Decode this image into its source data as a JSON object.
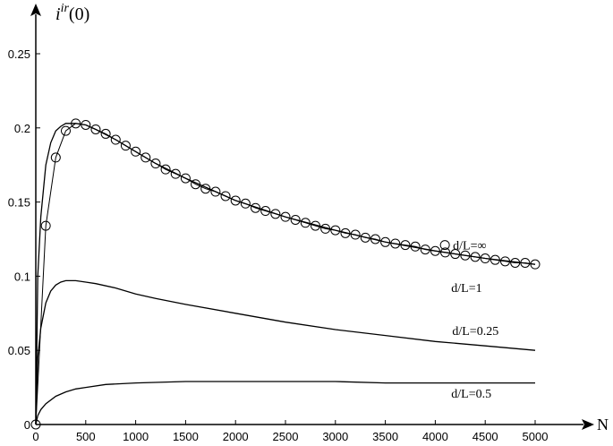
{
  "chart_data": {
    "type": "line",
    "title": "",
    "xlabel": "N",
    "ylabel": {
      "base": "i",
      "sup": "ir",
      "suffix": "(0)"
    },
    "xlim": [
      0,
      5000
    ],
    "ylim": [
      0,
      0.25
    ],
    "xticks": [
      0,
      500,
      1000,
      1500,
      2000,
      2500,
      3000,
      3500,
      4000,
      4500,
      5000
    ],
    "yticks": [
      0,
      0.05,
      0.1,
      0.15,
      0.2,
      0.25
    ],
    "ytick_labels": [
      "0",
      "0.05",
      "0.1",
      "0.15",
      "0.2",
      "0.25"
    ],
    "xtick_labels": [
      "0",
      "500",
      "1000",
      "1500",
      "2000",
      "2500",
      "3000",
      "3500",
      "4000",
      "4500",
      "5000"
    ],
    "grid": false,
    "series": [
      {
        "name": "d/L=∞",
        "style": "markers",
        "marker": "circle-open",
        "x": [
          0,
          100,
          200,
          300,
          400,
          500,
          600,
          700,
          800,
          900,
          1000,
          1100,
          1200,
          1300,
          1400,
          1500,
          1600,
          1700,
          1800,
          1900,
          2000,
          2100,
          2200,
          2300,
          2400,
          2500,
          2600,
          2700,
          2800,
          2900,
          3000,
          3100,
          3200,
          3300,
          3400,
          3500,
          3600,
          3700,
          3800,
          3900,
          4000,
          4100,
          4200,
          4300,
          4400,
          4500,
          4600,
          4700,
          4800,
          4900,
          5000
        ],
        "y": [
          0,
          0.134,
          0.18,
          0.198,
          0.203,
          0.202,
          0.199,
          0.196,
          0.192,
          0.188,
          0.184,
          0.18,
          0.176,
          0.172,
          0.169,
          0.166,
          0.162,
          0.159,
          0.157,
          0.154,
          0.151,
          0.149,
          0.146,
          0.144,
          0.142,
          0.14,
          0.138,
          0.136,
          0.134,
          0.132,
          0.131,
          0.129,
          0.128,
          0.126,
          0.125,
          0.123,
          0.122,
          0.121,
          0.12,
          0.118,
          0.117,
          0.116,
          0.115,
          0.114,
          0.113,
          0.112,
          0.111,
          0.11,
          0.109,
          0.109,
          0.108
        ]
      },
      {
        "name": "d/L=1",
        "style": "line",
        "x": [
          0,
          20,
          50,
          100,
          150,
          200,
          250,
          300,
          350,
          400,
          500,
          600,
          800,
          1000,
          1200,
          1500,
          2000,
          2500,
          3000,
          3500,
          4000,
          4500,
          5000
        ],
        "y": [
          0,
          0.1,
          0.14,
          0.175,
          0.19,
          0.198,
          0.201,
          0.203,
          0.203,
          0.203,
          0.202,
          0.199,
          0.192,
          0.184,
          0.176,
          0.166,
          0.151,
          0.14,
          0.131,
          0.123,
          0.117,
          0.112,
          0.108
        ]
      },
      {
        "name": "d/L=0.25",
        "style": "line",
        "x": [
          0,
          20,
          50,
          100,
          150,
          200,
          250,
          300,
          350,
          400,
          500,
          600,
          800,
          1000,
          1200,
          1500,
          2000,
          2500,
          3000,
          3500,
          4000,
          4500,
          5000
        ],
        "y": [
          0,
          0.045,
          0.065,
          0.082,
          0.09,
          0.094,
          0.096,
          0.097,
          0.097,
          0.097,
          0.096,
          0.095,
          0.092,
          0.088,
          0.085,
          0.081,
          0.075,
          0.069,
          0.064,
          0.06,
          0.056,
          0.053,
          0.05
        ]
      },
      {
        "name": "d/L=0.5",
        "style": "line",
        "x": [
          0,
          20,
          50,
          100,
          200,
          300,
          400,
          500,
          700,
          1000,
          1500,
          2000,
          2500,
          3000,
          3500,
          4000,
          4500,
          5000
        ],
        "y": [
          0,
          0.006,
          0.01,
          0.014,
          0.019,
          0.022,
          0.024,
          0.025,
          0.027,
          0.028,
          0.029,
          0.029,
          0.029,
          0.029,
          0.028,
          0.028,
          0.028,
          0.028
        ]
      }
    ],
    "annotations": [
      {
        "text": "d/L=∞",
        "x": 4150,
        "y": 0.118,
        "marker": true
      },
      {
        "text": "d/L=1",
        "x": 4160,
        "y": 0.0895
      },
      {
        "text": "d/L=0.25",
        "x": 4170,
        "y": 0.0605
      },
      {
        "text": "d/L=0.5",
        "x": 4160,
        "y": 0.018
      }
    ]
  }
}
